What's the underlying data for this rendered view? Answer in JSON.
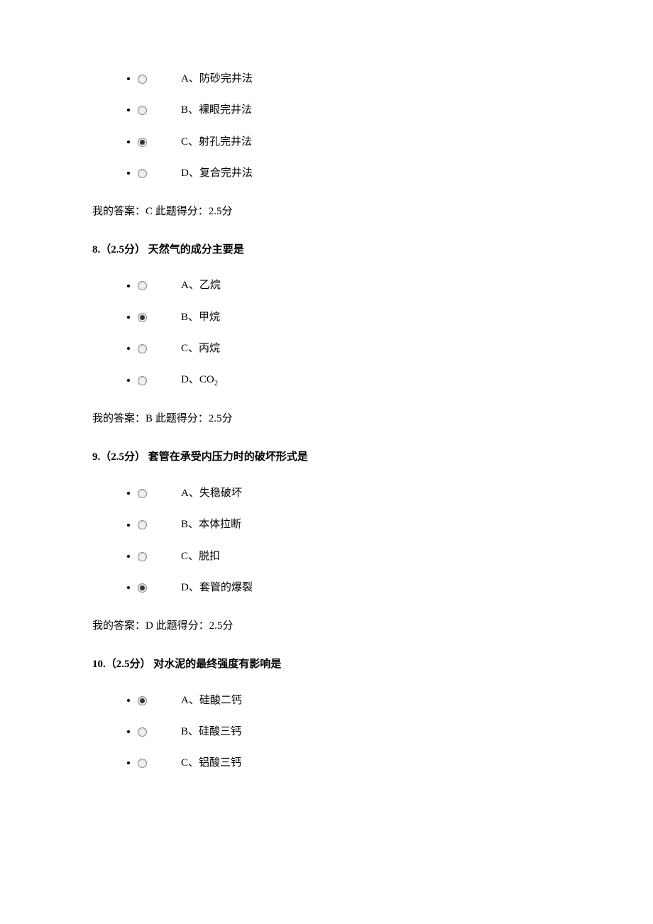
{
  "colors": {
    "background": "#ffffff",
    "text": "#000000",
    "radio_border": "#888888",
    "radio_dot": "#333333",
    "radio_fill": "#f0f0f0"
  },
  "typography": {
    "body_font": "SimSun",
    "option_fontsize": 15,
    "title_fontsize": 15,
    "title_fontweight": "bold"
  },
  "questions": [
    {
      "number_prefix": null,
      "title": null,
      "options": [
        {
          "label": "A、防砂完井法",
          "selected": false
        },
        {
          "label": "B、裸眼完井法",
          "selected": false
        },
        {
          "label": "C、射孔完井法",
          "selected": true
        },
        {
          "label": "D、复合完井法",
          "selected": false
        }
      ],
      "answer_line": "我的答案：C 此题得分：2.5分"
    },
    {
      "title": "8.（2.5分） 天然气的成分主要是",
      "options": [
        {
          "label": "A、乙烷",
          "selected": false
        },
        {
          "label": "B、甲烷",
          "selected": true
        },
        {
          "label": "C、丙烷",
          "selected": false
        },
        {
          "label_html": "D、CO",
          "sub": "2",
          "selected": false
        }
      ],
      "answer_line": "我的答案：B 此题得分：2.5分"
    },
    {
      "title": "9.（2.5分） 套管在承受内压力时的破坏形式是",
      "options": [
        {
          "label": "A、失稳破坏",
          "selected": false
        },
        {
          "label": "B、本体拉断",
          "selected": false
        },
        {
          "label": "C、脱扣",
          "selected": false
        },
        {
          "label": "D、套管的爆裂",
          "selected": true
        }
      ],
      "answer_line": "我的答案：D 此题得分：2.5分"
    },
    {
      "title": "10.（2.5分） 对水泥的最终强度有影响是",
      "options": [
        {
          "label": "A、硅酸二钙",
          "selected": true
        },
        {
          "label": "B、硅酸三钙",
          "selected": false
        },
        {
          "label": "C、铝酸三钙",
          "selected": false
        }
      ],
      "answer_line": null
    }
  ]
}
